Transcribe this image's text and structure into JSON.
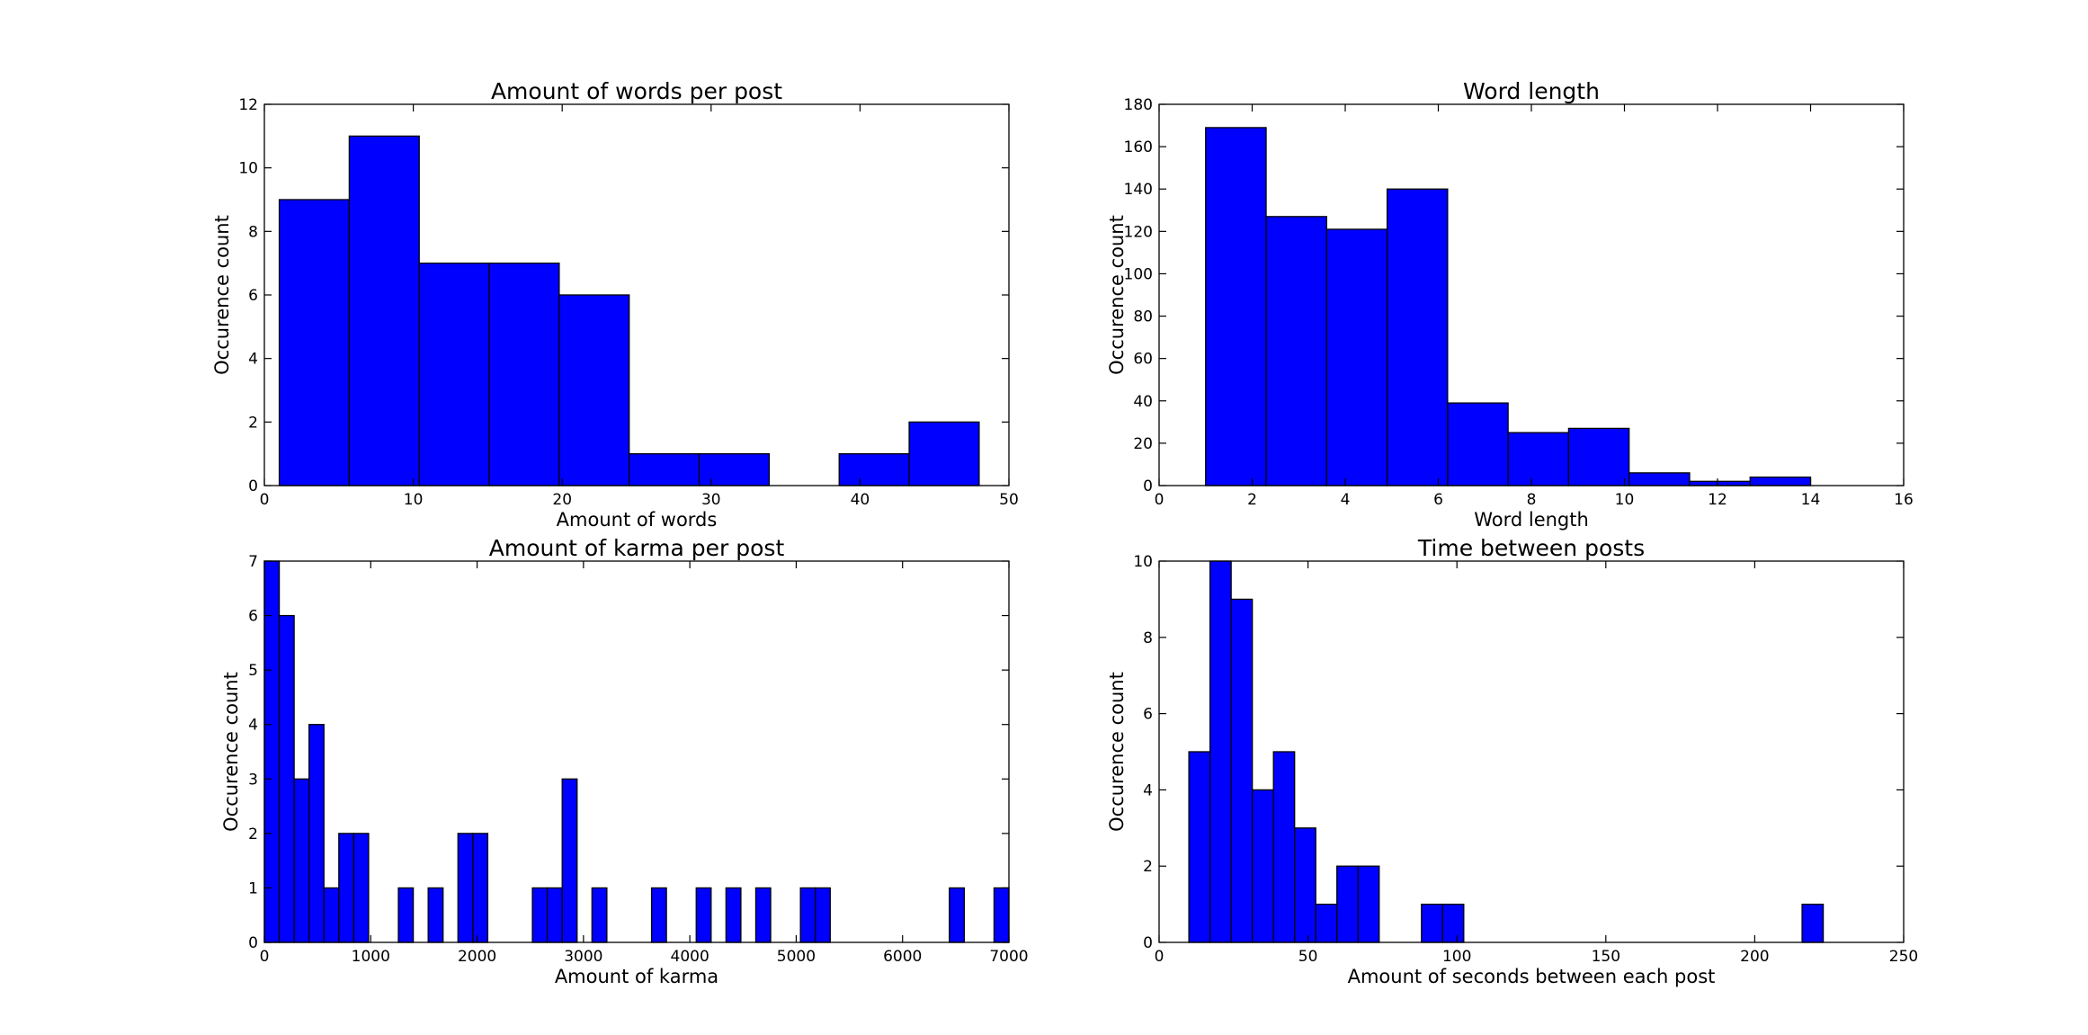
{
  "chart_data": [
    {
      "type": "bar",
      "title": "Amount of words per post",
      "xlabel": "Amount of words",
      "ylabel": "Occurence count",
      "xlim": [
        0,
        50
      ],
      "ylim": [
        0,
        12
      ],
      "xticks": [
        "0",
        "10",
        "20",
        "30",
        "40",
        "50"
      ],
      "yticks": [
        "0",
        "2",
        "4",
        "6",
        "8",
        "10",
        "12"
      ],
      "bin_edges": [
        1,
        5.7,
        10.4,
        15.1,
        19.8,
        24.5,
        29.2,
        33.9,
        38.6,
        43.3,
        48
      ],
      "values": [
        9,
        11,
        7,
        7,
        6,
        1,
        1,
        0,
        1,
        2
      ],
      "color": "#0000ff"
    },
    {
      "type": "bar",
      "title": "Word length",
      "xlabel": "Word length",
      "ylabel": "Occurence count",
      "xlim": [
        0,
        16
      ],
      "ylim": [
        0,
        180
      ],
      "xticks": [
        "0",
        "2",
        "4",
        "6",
        "8",
        "10",
        "12",
        "14",
        "16"
      ],
      "yticks": [
        "0",
        "20",
        "40",
        "60",
        "80",
        "100",
        "120",
        "140",
        "160",
        "180"
      ],
      "bin_edges": [
        1,
        2.3,
        3.6,
        4.9,
        6.2,
        7.5,
        8.8,
        10.1,
        11.4,
        12.7,
        14
      ],
      "values": [
        169,
        127,
        121,
        140,
        39,
        25,
        27,
        6,
        2,
        4
      ],
      "color": "#0000ff"
    },
    {
      "type": "bar",
      "title": "Amount of karma per post",
      "xlabel": "Amount of karma",
      "ylabel": "Occurence count",
      "xlim": [
        0,
        7000
      ],
      "ylim": [
        0,
        7
      ],
      "xticks": [
        "0",
        "1000",
        "2000",
        "3000",
        "4000",
        "5000",
        "6000",
        "7000"
      ],
      "yticks": [
        "0",
        "1",
        "2",
        "3",
        "4",
        "5",
        "6",
        "7"
      ],
      "bin_edges": [
        0,
        140,
        280,
        420,
        560,
        700,
        840,
        980,
        1120,
        1260,
        1400,
        1540,
        1680,
        1820,
        1960,
        2100,
        2240,
        2380,
        2520,
        2660,
        2800,
        2940,
        3080,
        3220,
        3360,
        3500,
        3640,
        3780,
        3920,
        4060,
        4200,
        4340,
        4480,
        4620,
        4760,
        4900,
        5040,
        5180,
        5320,
        5460,
        5600,
        5740,
        5880,
        6020,
        6160,
        6300,
        6440,
        6580,
        6720,
        6860,
        7000
      ],
      "values": [
        7,
        6,
        3,
        4,
        1,
        2,
        2,
        0,
        0,
        1,
        0,
        1,
        0,
        2,
        2,
        0,
        0,
        0,
        1,
        1,
        3,
        0,
        1,
        0,
        0,
        0,
        1,
        0,
        0,
        1,
        0,
        1,
        0,
        1,
        0,
        0,
        1,
        1,
        0,
        0,
        0,
        0,
        0,
        0,
        0,
        0,
        1,
        0,
        0,
        1
      ],
      "color": "#0000ff"
    },
    {
      "type": "bar",
      "title": "Time between posts",
      "xlabel": "Amount of seconds between each post",
      "ylabel": "Occurence count",
      "xlim": [
        0,
        250
      ],
      "ylim": [
        0,
        10
      ],
      "xticks": [
        "0",
        "50",
        "100",
        "150",
        "200",
        "250"
      ],
      "yticks": [
        "0",
        "2",
        "4",
        "6",
        "8",
        "10"
      ],
      "bin_edges": [
        10,
        17.1,
        24.2,
        31.3,
        38.4,
        45.5,
        52.6,
        59.7,
        66.8,
        73.9,
        81,
        88.1,
        95.2,
        102.3,
        109.4,
        116.5,
        123.6,
        130.7,
        137.8,
        144.9,
        152,
        159.1,
        166.2,
        173.3,
        180.4,
        187.5,
        194.6,
        201.7,
        208.8,
        215.9,
        223
      ],
      "values": [
        5,
        10,
        9,
        4,
        5,
        3,
        1,
        2,
        2,
        0,
        0,
        1,
        1,
        0,
        0,
        0,
        0,
        0,
        0,
        0,
        0,
        0,
        0,
        0,
        0,
        0,
        0,
        0,
        0,
        1
      ],
      "color": "#0000ff"
    }
  ]
}
